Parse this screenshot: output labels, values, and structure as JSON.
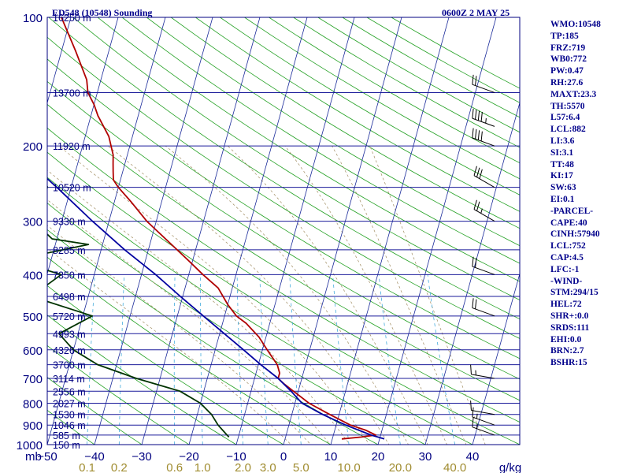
{
  "header": {
    "station": "ED548 (10548) Sounding",
    "time": "0600Z  2 MAY 25"
  },
  "indices": [
    "WMO:10548",
    "TP:185",
    "FRZ:719",
    "WB0:772",
    "PW:0.47",
    "RH:27.6",
    "MAXT:23.3",
    "TH:5570",
    "L57:6.4",
    "LCL:882",
    "LI:3.6",
    "SI:3.1",
    "TT:48",
    "KI:17",
    "SW:63",
    "EI:0.1",
    "-PARCEL-",
    "CAPE:40",
    "CINH:57940",
    "LCL:752",
    "CAP:4.5",
    "LFC:-1",
    "-WIND-",
    "STM:294/15",
    "HEL:72",
    "SHR+:0.0",
    "SRDS:111",
    "EHI:0.0",
    "BRN:2.7",
    "BSHR:15"
  ],
  "chart_data": {
    "type": "skew-t log-p sounding",
    "pressure_axis": {
      "unit_label": "mb",
      "ticks": [
        100,
        200,
        300,
        400,
        500,
        600,
        700,
        800,
        900,
        1000
      ],
      "range": [
        1000,
        100
      ],
      "scale": "log"
    },
    "temperature_axis": {
      "ticks": [
        -50,
        -40,
        -30,
        -20,
        -10,
        0,
        10,
        20,
        30,
        40
      ],
      "tick_labels": [
        "−50",
        "−40",
        "−30",
        "−20",
        "−10",
        "0",
        "10",
        "20",
        "30",
        "40"
      ],
      "range": [
        -50,
        50
      ]
    },
    "mixing_ratio_axis": {
      "unit_label": "g/kg",
      "labels": [
        "0.1",
        "0.2",
        "0.6",
        "1.0",
        "2.0",
        "3.0",
        "5.0",
        "10.0",
        "20.0",
        "40.0"
      ]
    },
    "height_labels": [
      {
        "p": 100,
        "label": "16250 m"
      },
      {
        "p": 150,
        "label": "13700 m"
      },
      {
        "p": 200,
        "label": "11920 m"
      },
      {
        "p": 250,
        "label": "10520 m"
      },
      {
        "p": 300,
        "label": "9330 m"
      },
      {
        "p": 350,
        "label": "8285 m"
      },
      {
        "p": 400,
        "label": "7350 m"
      },
      {
        "p": 450,
        "label": "6498 m"
      },
      {
        "p": 500,
        "label": "5720 m"
      },
      {
        "p": 550,
        "label": "4993 m"
      },
      {
        "p": 600,
        "label": "4326 m"
      },
      {
        "p": 650,
        "label": "3700 m"
      },
      {
        "p": 700,
        "label": "3114 m"
      },
      {
        "p": 750,
        "label": "2556 m"
      },
      {
        "p": 800,
        "label": "2027 m"
      },
      {
        "p": 850,
        "label": "1530 m"
      },
      {
        "p": 900,
        "label": "1046 m"
      },
      {
        "p": 950,
        "label": "585 m"
      },
      {
        "p": 1000,
        "label": "150 m"
      }
    ],
    "series": [
      {
        "name": "",
        "color": "#b00000",
        "points": [
          [
            970,
            12
          ],
          [
            960,
            16
          ],
          [
            950,
            19
          ],
          [
            925,
            16.5
          ],
          [
            900,
            13
          ],
          [
            850,
            8
          ],
          [
            800,
            3
          ],
          [
            750,
            -1
          ],
          [
            720,
            -3.5
          ],
          [
            700,
            -5
          ],
          [
            680,
            -5
          ],
          [
            650,
            -6
          ],
          [
            600,
            -9
          ],
          [
            560,
            -11.5
          ],
          [
            520,
            -15
          ],
          [
            500,
            -17.5
          ],
          [
            470,
            -20
          ],
          [
            430,
            -23
          ],
          [
            400,
            -27
          ],
          [
            370,
            -31
          ],
          [
            330,
            -37
          ],
          [
            300,
            -42
          ],
          [
            270,
            -46.5
          ],
          [
            250,
            -50
          ],
          [
            240,
            -51.5
          ],
          [
            230,
            -52
          ],
          [
            220,
            -52.5
          ],
          [
            210,
            -53
          ],
          [
            190,
            -55
          ],
          [
            170,
            -58.5
          ],
          [
            160,
            -60
          ],
          [
            150,
            -62
          ],
          [
            140,
            -63
          ],
          [
            120,
            -67
          ],
          [
            100,
            -72
          ]
        ]
      },
      {
        "name": "",
        "color": "#003300",
        "points": [
          [
            960,
            -12
          ],
          [
            950,
            -12.5
          ],
          [
            900,
            -15
          ],
          [
            850,
            -17
          ],
          [
            800,
            -20
          ],
          [
            750,
            -25
          ],
          [
            700,
            -35
          ],
          [
            650,
            -44
          ],
          [
            600,
            -50
          ],
          [
            550,
            -54
          ],
          [
            500,
            -48
          ],
          [
            450,
            -62
          ],
          [
            400,
            -57
          ],
          [
            370,
            -68
          ],
          [
            340,
            -53
          ],
          [
            330,
            -61
          ],
          [
            300,
            -66
          ],
          [
            290,
            -64
          ],
          [
            270,
            -66
          ],
          [
            250,
            -65
          ],
          [
            240,
            -66
          ],
          [
            230,
            -69
          ],
          [
            220,
            -72
          ],
          [
            200,
            -76
          ],
          [
            180,
            -78
          ],
          [
            160,
            -82
          ],
          [
            150,
            -84
          ],
          [
            140,
            -86
          ],
          [
            120,
            -91
          ],
          [
            100,
            -98
          ]
        ]
      },
      {
        "name": "",
        "color": "#0000a0",
        "points": [
          [
            970,
            21
          ],
          [
            950,
            18
          ],
          [
            900,
            12
          ],
          [
            850,
            6.5
          ],
          [
            800,
            1.5
          ],
          [
            750,
            -1.5
          ],
          [
            700,
            -5
          ],
          [
            650,
            -9.5
          ],
          [
            600,
            -14
          ],
          [
            550,
            -19
          ],
          [
            500,
            -24.5
          ],
          [
            450,
            -30.5
          ],
          [
            400,
            -37
          ],
          [
            350,
            -45
          ],
          [
            300,
            -53.5
          ],
          [
            250,
            -63
          ],
          [
            220,
            -70
          ],
          [
            200,
            -74
          ],
          [
            150,
            -86
          ],
          [
            120,
            -95
          ],
          [
            110,
            -99
          ]
        ]
      }
    ],
    "wind_barbs": [
      {
        "p": 950,
        "dir": 290,
        "kt": 15
      },
      {
        "p": 900,
        "dir": 290,
        "kt": 15
      },
      {
        "p": 850,
        "dir": 280,
        "kt": 10
      },
      {
        "p": 700,
        "dir": 280,
        "kt": 15
      },
      {
        "p": 500,
        "dir": 290,
        "kt": 20
      },
      {
        "p": 400,
        "dir": 290,
        "kt": 20
      },
      {
        "p": 300,
        "dir": 300,
        "kt": 25
      },
      {
        "p": 250,
        "dir": 300,
        "kt": 30
      },
      {
        "p": 200,
        "dir": 290,
        "kt": 40
      },
      {
        "p": 180,
        "dir": 290,
        "kt": 45
      },
      {
        "p": 150,
        "dir": 290,
        "kt": 20
      }
    ]
  }
}
